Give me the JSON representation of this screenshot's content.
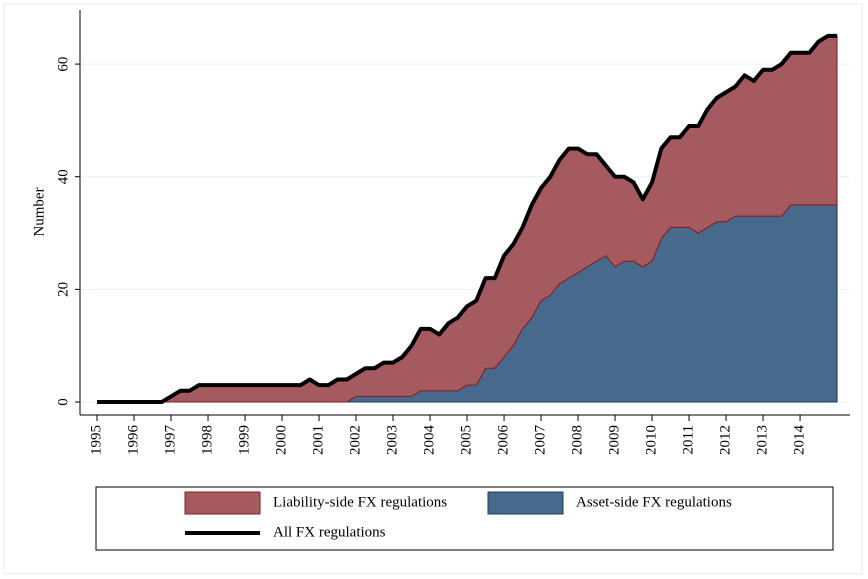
{
  "chart_data": {
    "type": "area",
    "y_label": "Number",
    "x": [
      1995,
      1995.25,
      1995.5,
      1995.75,
      1996,
      1996.25,
      1996.5,
      1996.75,
      1997,
      1997.25,
      1997.5,
      1997.75,
      1998,
      1998.25,
      1998.5,
      1998.75,
      1999,
      1999.25,
      1999.5,
      1999.75,
      2000,
      2000.25,
      2000.5,
      2000.75,
      2001,
      2001.25,
      2001.5,
      2001.75,
      2002,
      2002.25,
      2002.5,
      2002.75,
      2003,
      2003.25,
      2003.5,
      2003.75,
      2004,
      2004.25,
      2004.5,
      2004.75,
      2005,
      2005.25,
      2005.5,
      2005.75,
      2006,
      2006.25,
      2006.5,
      2006.75,
      2007,
      2007.25,
      2007.5,
      2007.75,
      2008,
      2008.25,
      2008.5,
      2008.75,
      2009,
      2009.25,
      2009.5,
      2009.75,
      2010,
      2010.25,
      2010.5,
      2010.75,
      2011,
      2011.25,
      2011.5,
      2011.75,
      2012,
      2012.25,
      2012.5,
      2012.75,
      2013,
      2013.25,
      2013.5,
      2013.75,
      2014,
      2014.25,
      2014.5,
      2014.75,
      2015
    ],
    "series": [
      {
        "name": "Liability-side FX regulations",
        "mark": "area",
        "color": "#a45a5f",
        "edge": "#8b1c22",
        "values": [
          0,
          0,
          0,
          0,
          0,
          0,
          0,
          0,
          1,
          2,
          2,
          3,
          3,
          3,
          3,
          3,
          3,
          3,
          3,
          3,
          3,
          3,
          3,
          4,
          3,
          3,
          4,
          4,
          4,
          5,
          5,
          6,
          6,
          7,
          9,
          11,
          11,
          10,
          12,
          13,
          14,
          15,
          16,
          16,
          18,
          18,
          18,
          20,
          20,
          21,
          22,
          23,
          22,
          20,
          19,
          16,
          16,
          15,
          14,
          12,
          14,
          16,
          16,
          16,
          18,
          19,
          21,
          22,
          23,
          23,
          25,
          24,
          26,
          26,
          27,
          27,
          27,
          27,
          29,
          30,
          30
        ]
      },
      {
        "name": "Asset-side FX regulations",
        "mark": "area",
        "color": "#476a8c",
        "edge": "#1e3a5c",
        "values": [
          0,
          0,
          0,
          0,
          0,
          0,
          0,
          0,
          0,
          0,
          0,
          0,
          0,
          0,
          0,
          0,
          0,
          0,
          0,
          0,
          0,
          0,
          0,
          0,
          0,
          0,
          0,
          0,
          1,
          1,
          1,
          1,
          1,
          1,
          1,
          2,
          2,
          2,
          2,
          2,
          3,
          3,
          6,
          6,
          8,
          10,
          13,
          15,
          18,
          19,
          21,
          22,
          23,
          24,
          25,
          26,
          24,
          25,
          25,
          24,
          25,
          29,
          31,
          31,
          31,
          30,
          31,
          32,
          32,
          33,
          33,
          33,
          33,
          33,
          33,
          35,
          35,
          35,
          35,
          35,
          35
        ]
      },
      {
        "name": "All FX regulations",
        "mark": "line",
        "color": "#000000",
        "values": [
          0,
          0,
          0,
          0,
          0,
          0,
          0,
          0,
          1,
          2,
          2,
          3,
          3,
          3,
          3,
          3,
          3,
          3,
          3,
          3,
          3,
          3,
          3,
          4,
          3,
          3,
          4,
          4,
          5,
          6,
          6,
          7,
          7,
          8,
          10,
          13,
          13,
          12,
          14,
          15,
          17,
          18,
          22,
          22,
          26,
          28,
          31,
          35,
          38,
          40,
          43,
          45,
          45,
          44,
          44,
          42,
          40,
          40,
          39,
          36,
          39,
          45,
          47,
          47,
          49,
          49,
          52,
          54,
          55,
          56,
          58,
          57,
          59,
          59,
          60,
          62,
          62,
          62,
          64,
          65,
          65
        ]
      }
    ],
    "xlim": [
      1994.54,
      2015.35
    ],
    "xticks": [
      1995,
      1996,
      1997,
      1998,
      1999,
      2000,
      2001,
      2002,
      2003,
      2004,
      2005,
      2006,
      2007,
      2008,
      2009,
      2010,
      2011,
      2012,
      2013,
      2014
    ],
    "ylim": [
      -2.3,
      69.6
    ],
    "yticks": [
      0,
      20,
      40,
      60
    ],
    "grid": true
  }
}
